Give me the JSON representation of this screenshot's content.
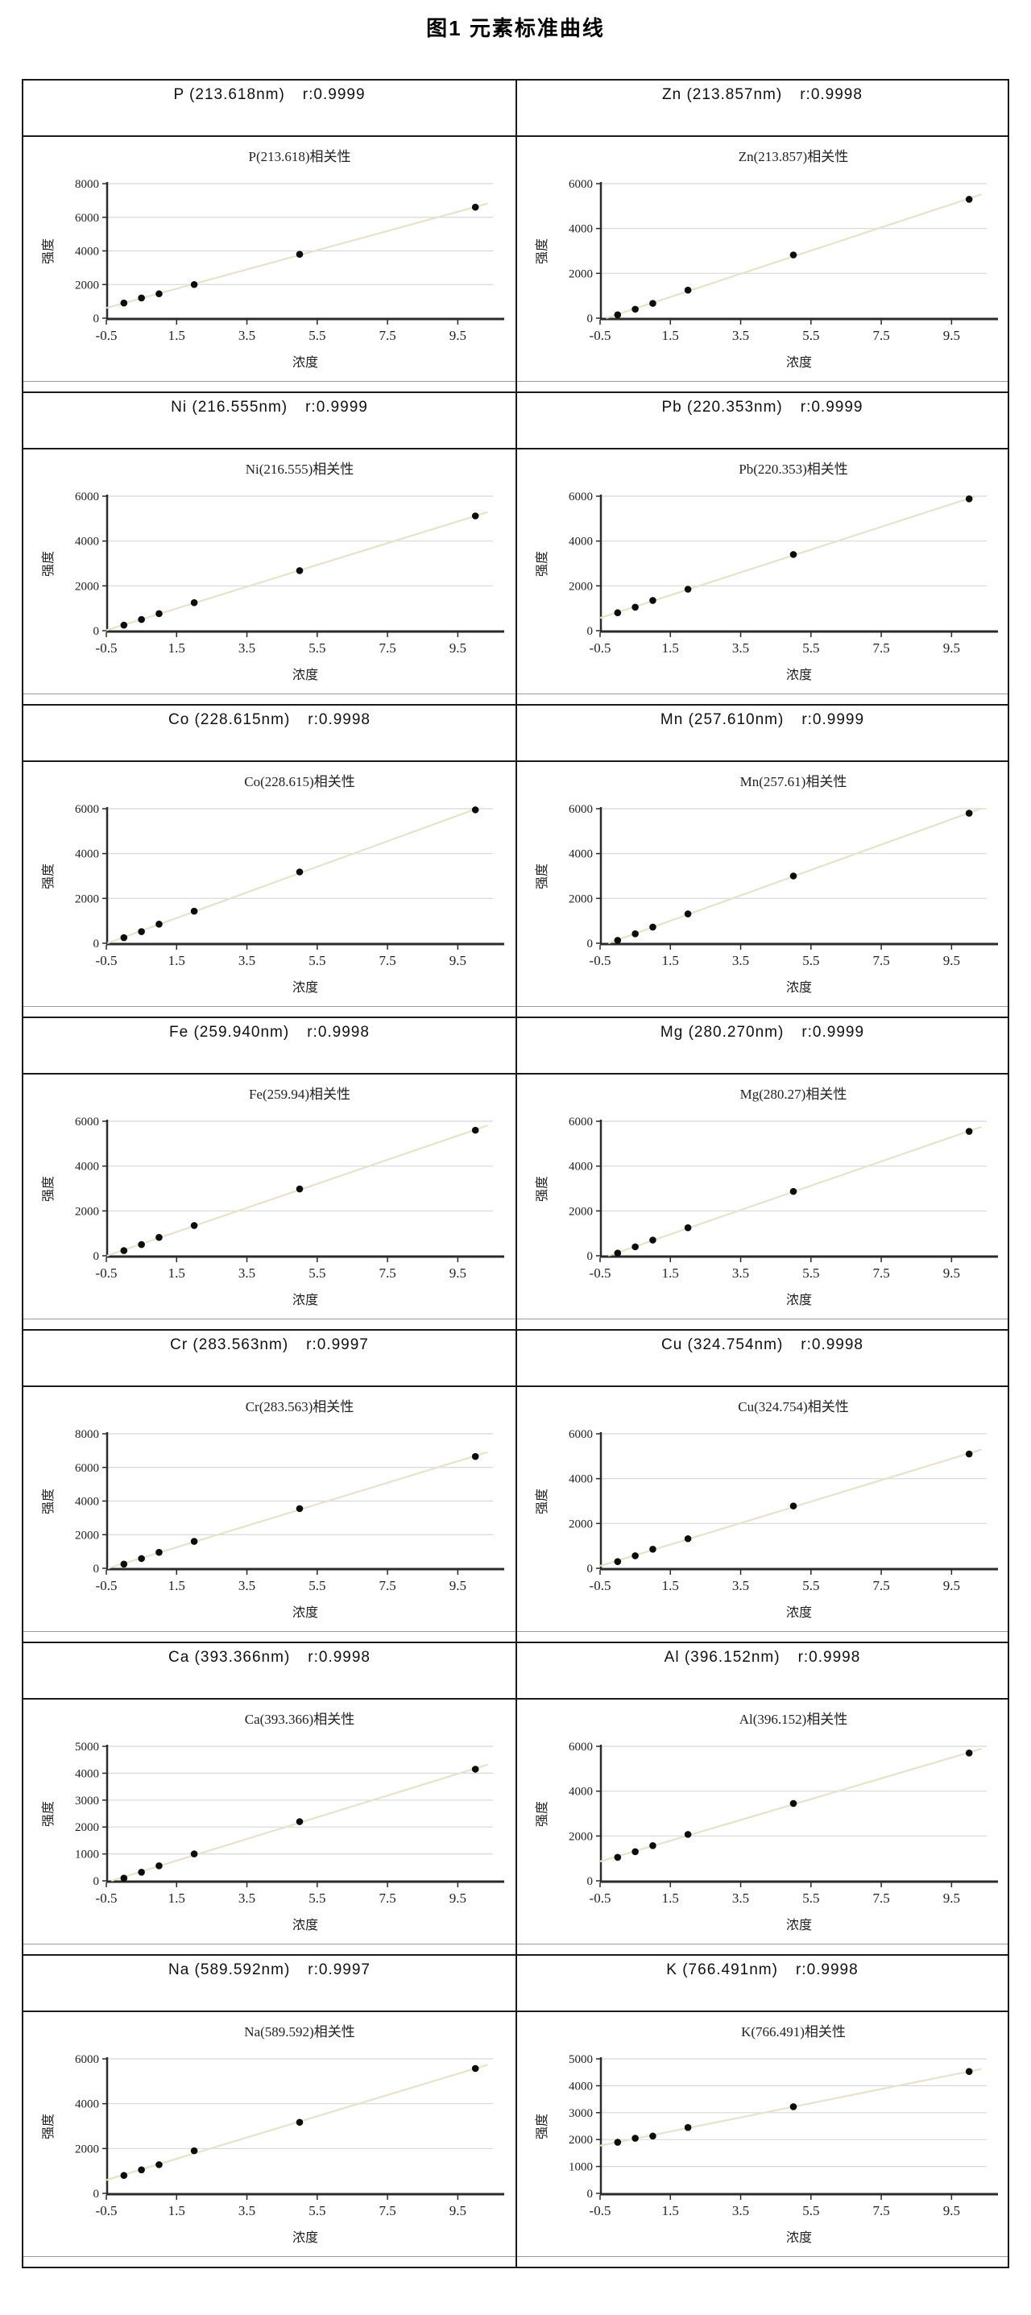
{
  "page_title": "图1 元素标准曲线",
  "colors": {
    "table_border": "#1a1a1a",
    "chart_edge": "#9a9a9a",
    "gridline": "#d8d8d8",
    "axis": "#2b2b2b",
    "point": "#0d0d0d",
    "trend_line": "#e9e2cb"
  },
  "chart_data": {
    "layout": "7 rows × 2 columns, each cell: element header row above scatter chart",
    "common": {
      "type": "scatter",
      "xlabel": "浓度",
      "ylabel": "强度",
      "x_ticks": [
        -0.5,
        1.5,
        3.5,
        5.5,
        7.5,
        9.5
      ],
      "xlim": [
        -0.5,
        10.5
      ],
      "x": [
        0,
        0.5,
        1,
        2,
        5,
        10
      ],
      "grid": "horizontal gridlines only",
      "trend": "linear fit line, pale beige"
    },
    "charts": [
      {
        "element": "P",
        "wavelength": "213.618nm",
        "header_label": "P (213.618nm)",
        "r_label": "r:0.9999",
        "title": "P(213.618)相关性",
        "ymax": 8000,
        "ystep": 2000,
        "y": [
          900,
          1200,
          1450,
          2000,
          3800,
          6600
        ]
      },
      {
        "element": "Zn",
        "wavelength": "213.857nm",
        "header_label": "Zn (213.857nm)",
        "r_label": "r:0.9998",
        "title": "Zn(213.857)相关性",
        "ymax": 6000,
        "ystep": 2000,
        "y": [
          150,
          400,
          660,
          1250,
          2820,
          5300
        ]
      },
      {
        "element": "Ni",
        "wavelength": "216.555nm",
        "header_label": "Ni (216.555nm)",
        "r_label": "r:0.9999",
        "title": "Ni(216.555)相关性",
        "ymax": 6000,
        "ystep": 2000,
        "y": [
          250,
          500,
          760,
          1250,
          2680,
          5120
        ]
      },
      {
        "element": "Pb",
        "wavelength": "220.353nm",
        "header_label": "Pb (220.353nm)",
        "r_label": "r:0.9999",
        "title": "Pb(220.353)相关性",
        "ymax": 6000,
        "ystep": 2000,
        "y": [
          800,
          1050,
          1350,
          1850,
          3400,
          5880
        ]
      },
      {
        "element": "Co",
        "wavelength": "228.615nm",
        "header_label": "Co (228.615nm)",
        "r_label": "r:0.9998",
        "title": "Co(228.615)相关性",
        "ymax": 6000,
        "ystep": 2000,
        "y": [
          250,
          520,
          850,
          1430,
          3180,
          5950
        ]
      },
      {
        "element": "Mn",
        "wavelength": "257.610nm",
        "header_label": "Mn (257.610nm)",
        "r_label": "r:0.9999",
        "title": "Mn(257.61)相关性",
        "ymax": 6000,
        "ystep": 2000,
        "y": [
          130,
          420,
          720,
          1310,
          3000,
          5800
        ]
      },
      {
        "element": "Fe",
        "wavelength": "259.940nm",
        "header_label": "Fe (259.940nm)",
        "r_label": "r:0.9998",
        "title": "Fe(259.94)相关性",
        "ymax": 6000,
        "ystep": 2000,
        "y": [
          230,
          500,
          820,
          1350,
          2980,
          5600
        ]
      },
      {
        "element": "Mg",
        "wavelength": "280.270nm",
        "header_label": "Mg (280.270nm)",
        "r_label": "r:0.9999",
        "title": "Mg(280.27)相关性",
        "ymax": 6000,
        "ystep": 2000,
        "y": [
          120,
          400,
          700,
          1250,
          2870,
          5550
        ]
      },
      {
        "element": "Cr",
        "wavelength": "283.563nm",
        "header_label": "Cr (283.563nm)",
        "r_label": "r:0.9997",
        "title": "Cr(283.563)相关性",
        "ymax": 8000,
        "ystep": 2000,
        "y": [
          250,
          580,
          950,
          1600,
          3550,
          6650
        ]
      },
      {
        "element": "Cu",
        "wavelength": "324.754nm",
        "header_label": "Cu (324.754nm)",
        "r_label": "r:0.9998",
        "title": "Cu(324.754)相关性",
        "ymax": 6000,
        "ystep": 2000,
        "y": [
          300,
          560,
          850,
          1320,
          2780,
          5100
        ]
      },
      {
        "element": "Ca",
        "wavelength": "393.366nm",
        "header_label": "Ca (393.366nm)",
        "r_label": "r:0.9998",
        "title": "Ca(393.366)相关性",
        "ymax": 5000,
        "ystep": 1000,
        "y": [
          100,
          320,
          560,
          1000,
          2200,
          4150
        ]
      },
      {
        "element": "Al",
        "wavelength": "396.152nm",
        "header_label": "Al (396.152nm)",
        "r_label": "r:0.9998",
        "title": "Al(396.152)相关性",
        "ymax": 6000,
        "ystep": 2000,
        "y": [
          1050,
          1300,
          1570,
          2070,
          3450,
          5700
        ]
      },
      {
        "element": "Na",
        "wavelength": "589.592nm",
        "header_label": "Na (589.592nm)",
        "r_label": "r:0.9997",
        "title": "Na(589.592)相关性",
        "ymax": 6000,
        "ystep": 2000,
        "y": [
          800,
          1050,
          1280,
          1900,
          3170,
          5570
        ]
      },
      {
        "element": "K",
        "wavelength": "766.491nm",
        "header_label": "K (766.491nm)",
        "r_label": "r:0.9998",
        "title": "K(766.491)相关性",
        "ymax": 5000,
        "ystep": 1000,
        "y": [
          1900,
          2050,
          2130,
          2450,
          3220,
          4530
        ]
      }
    ]
  }
}
